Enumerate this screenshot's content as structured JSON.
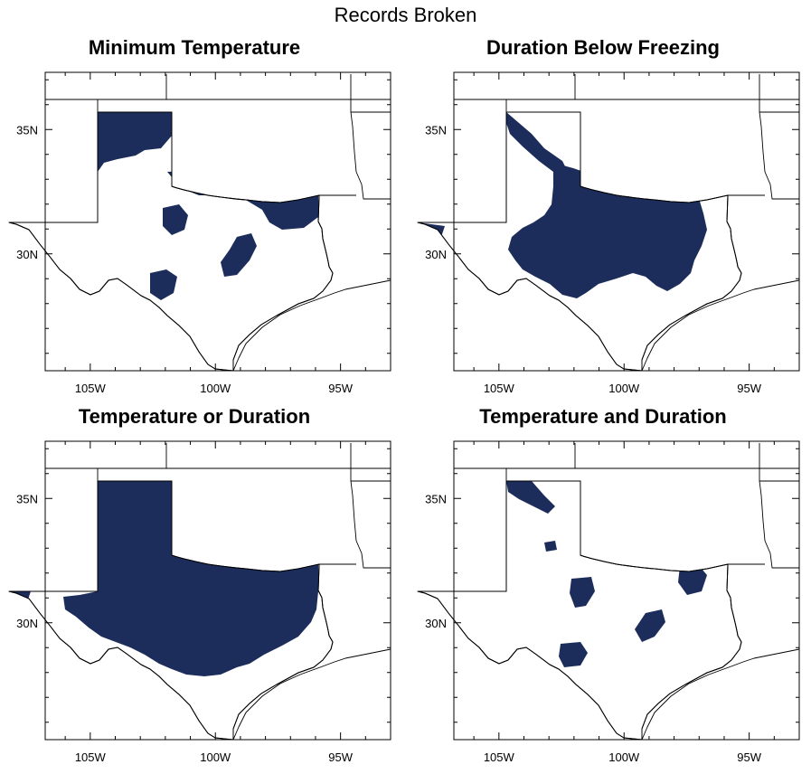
{
  "figure": {
    "title": "Records Broken",
    "fill_color": "#1c2d5c",
    "panels": [
      {
        "title": "Minimum Temperature"
      },
      {
        "title": "Duration Below Freezing"
      },
      {
        "title": "Temperature or Duration"
      },
      {
        "title": "Temperature and Duration"
      }
    ],
    "lon_labels": [
      "105W",
      "100W",
      "95W"
    ],
    "lat_labels": [
      "35N",
      "30N"
    ]
  }
}
